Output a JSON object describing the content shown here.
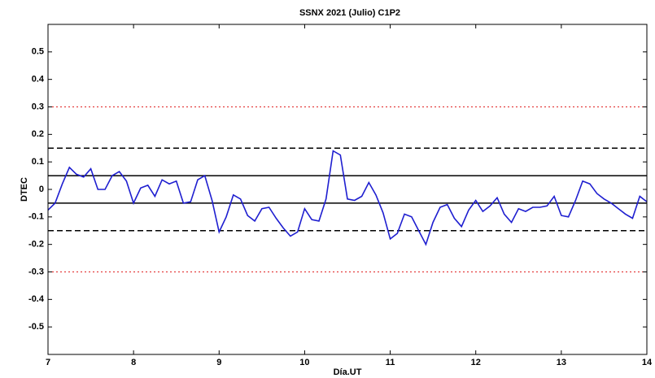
{
  "chart_data": {
    "type": "line",
    "title": "SSNX 2021 (Julio) C1P2",
    "xlabel": "Día.UT",
    "ylabel": "DTEC",
    "xlim": [
      7,
      14
    ],
    "ylim": [
      -0.6,
      0.6
    ],
    "xticks": [
      7,
      8,
      9,
      10,
      11,
      12,
      13,
      14
    ],
    "yticks": [
      -0.5,
      -0.4,
      -0.3,
      -0.2,
      -0.1,
      0,
      0.1,
      0.2,
      0.3,
      0.4,
      0.5
    ],
    "hlines": [
      {
        "y": 0.05,
        "style": "solid",
        "color": "#000000"
      },
      {
        "y": -0.05,
        "style": "solid",
        "color": "#000000"
      },
      {
        "y": 0.15,
        "style": "dashed",
        "color": "#000000"
      },
      {
        "y": -0.15,
        "style": "dashed",
        "color": "#000000"
      },
      {
        "y": 0.3,
        "style": "dotted",
        "color": "#e02020"
      },
      {
        "y": -0.3,
        "style": "dotted",
        "color": "#e02020"
      }
    ],
    "series": [
      {
        "color": "#1f1fd0",
        "x": [
          7,
          7.083,
          7.167,
          7.25,
          7.333,
          7.417,
          7.5,
          7.583,
          7.667,
          7.75,
          7.833,
          7.917,
          8,
          8.083,
          8.167,
          8.25,
          8.333,
          8.417,
          8.5,
          8.583,
          8.667,
          8.75,
          8.833,
          8.917,
          9,
          9.083,
          9.167,
          9.25,
          9.333,
          9.417,
          9.5,
          9.583,
          9.667,
          9.75,
          9.833,
          9.917,
          10,
          10.083,
          10.167,
          10.25,
          10.333,
          10.417,
          10.5,
          10.583,
          10.667,
          10.75,
          10.833,
          10.917,
          11,
          11.083,
          11.167,
          11.25,
          11.333,
          11.417,
          11.5,
          11.583,
          11.667,
          11.75,
          11.833,
          11.917,
          12,
          12.083,
          12.167,
          12.25,
          12.333,
          12.417,
          12.5,
          12.583,
          12.667,
          12.75,
          12.833,
          12.917,
          13,
          13.083,
          13.167,
          13.25,
          13.333,
          13.417,
          13.5,
          13.583,
          13.667,
          13.75,
          13.833,
          13.917,
          14
        ],
        "values": [
          -0.075,
          -0.05,
          0.02,
          0.08,
          0.055,
          0.045,
          0.075,
          0,
          0,
          0.05,
          0.065,
          0.03,
          -0.05,
          0.005,
          0.015,
          -0.025,
          0.035,
          0.02,
          0.03,
          -0.05,
          -0.045,
          0.035,
          0.05,
          -0.04,
          -0.155,
          -0.1,
          -0.02,
          -0.035,
          -0.095,
          -0.115,
          -0.07,
          -0.065,
          -0.105,
          -0.14,
          -0.17,
          -0.155,
          -0.07,
          -0.11,
          -0.115,
          -0.035,
          0.14,
          0.125,
          -0.035,
          -0.04,
          -0.025,
          0.025,
          -0.02,
          -0.085,
          -0.18,
          -0.16,
          -0.09,
          -0.1,
          -0.15,
          -0.2,
          -0.12,
          -0.065,
          -0.055,
          -0.105,
          -0.135,
          -0.075,
          -0.04,
          -0.08,
          -0.06,
          -0.03,
          -0.09,
          -0.12,
          -0.07,
          -0.08,
          -0.065,
          -0.065,
          -0.06,
          -0.025,
          -0.095,
          -0.1,
          -0.04,
          0.03,
          0.02,
          -0.015,
          -0.035,
          -0.05,
          -0.07,
          -0.09,
          -0.105,
          -0.025,
          -0.045
        ]
      }
    ]
  }
}
